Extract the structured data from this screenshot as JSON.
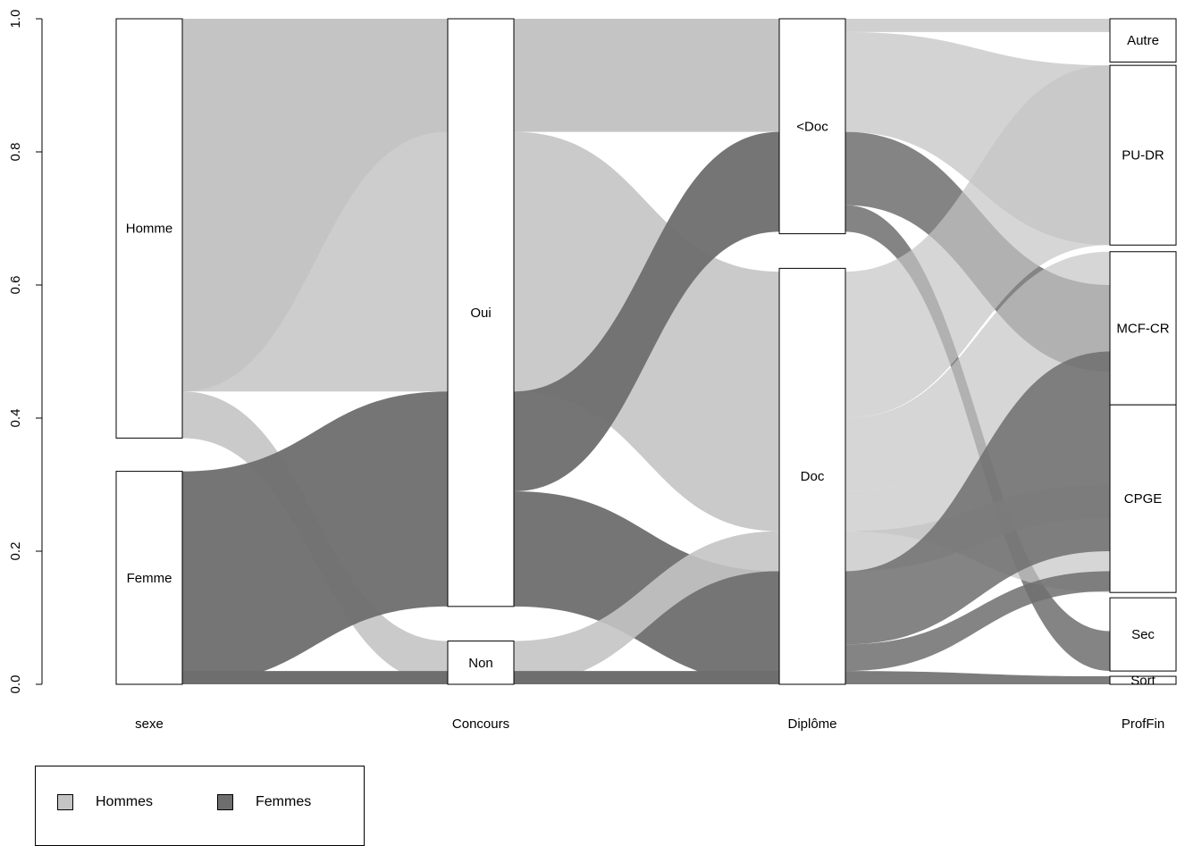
{
  "chart_data": {
    "type": "alluvial",
    "ylim": [
      0,
      1
    ],
    "yticks": [
      "0.0",
      "0.2",
      "0.4",
      "0.6",
      "0.8",
      "1.0"
    ],
    "axes": [
      {
        "name": "sexe",
        "categories": [
          {
            "label": "Femme",
            "range": [
              0,
              0.32
            ]
          },
          {
            "label": "Homme",
            "range": [
              0.37,
              1.0
            ]
          }
        ]
      },
      {
        "name": "Concours",
        "categories": [
          {
            "label": "Non",
            "range": [
              0,
              0.065
            ]
          },
          {
            "label": "Oui",
            "range": [
              0.117,
              1.0
            ]
          }
        ]
      },
      {
        "name": "Diplôme",
        "categories": [
          {
            "label": "Doc",
            "range": [
              0,
              0.625
            ]
          },
          {
            "label": "<Doc",
            "range": [
              0.677,
              1.0
            ]
          }
        ]
      },
      {
        "name": "ProfFin",
        "categories": [
          {
            "label": "Sort",
            "range": [
              0,
              0.012
            ]
          },
          {
            "label": "Sec",
            "range": [
              0.02,
              0.13
            ]
          },
          {
            "label": "CPGE",
            "range": [
              0.138,
              0.42
            ]
          },
          {
            "label": "MCF-CR",
            "range": [
              0.42,
              0.65
            ]
          },
          {
            "label": "PU-DR",
            "range": [
              0.66,
              0.93
            ]
          },
          {
            "label": "Autre",
            "range": [
              0.935,
              1.0
            ]
          }
        ]
      }
    ],
    "legend": [
      {
        "label": "Hommes",
        "color": "#c4c4c4"
      },
      {
        "label": "Femmes",
        "color": "#6e6e6e"
      }
    ],
    "legend_position": "bottom-left",
    "colors": {
      "hommes": "#c4c4c4",
      "femmes": "#6e6e6e"
    }
  }
}
